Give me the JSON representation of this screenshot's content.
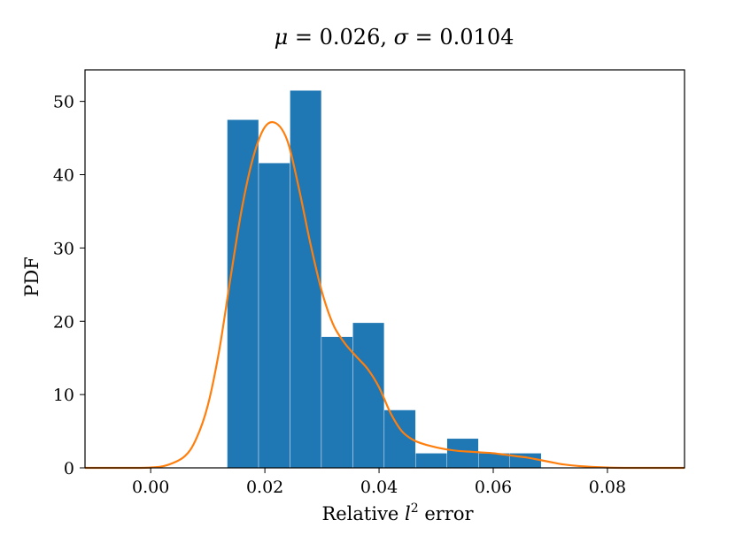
{
  "chart_data": {
    "type": "bar",
    "title": {
      "mu_symbol": "μ",
      "mu_value": "0.026",
      "sigma_symbol": "σ",
      "sigma_value": "0.0104",
      "eq": " = ",
      "sep": ", "
    },
    "xlabel": {
      "prefix": "Relative ",
      "var": "l",
      "sup": "2",
      "suffix": " error"
    },
    "ylabel": "PDF",
    "xlim": [
      -0.0115,
      0.0935
    ],
    "ylim": [
      0,
      54.3
    ],
    "x_ticks": [
      0.0,
      0.02,
      0.04,
      0.06,
      0.08
    ],
    "x_tick_labels": [
      "0.00",
      "0.02",
      "0.04",
      "0.06",
      "0.08"
    ],
    "y_ticks": [
      0,
      10,
      20,
      30,
      40,
      50
    ],
    "y_tick_labels": [
      "0",
      "10",
      "20",
      "30",
      "40",
      "50"
    ],
    "grid": false,
    "colors": {
      "bars": "#1f77b4",
      "kde": "#ff7f0e"
    },
    "histogram": {
      "bin_edges": [
        0.0134,
        0.0189,
        0.0244,
        0.0299,
        0.0354,
        0.0409,
        0.0464,
        0.0519,
        0.0574,
        0.0629,
        0.0684
      ],
      "values": [
        47.5,
        41.6,
        51.5,
        17.9,
        19.8,
        7.9,
        2.0,
        4.0,
        2.0,
        2.0
      ]
    },
    "kde": {
      "x": [
        -0.0115,
        -0.005,
        0.0,
        0.003,
        0.006,
        0.008,
        0.01,
        0.012,
        0.014,
        0.016,
        0.018,
        0.02,
        0.022,
        0.024,
        0.026,
        0.028,
        0.03,
        0.032,
        0.034,
        0.036,
        0.038,
        0.04,
        0.042,
        0.044,
        0.046,
        0.048,
        0.05,
        0.052,
        0.054,
        0.056,
        0.058,
        0.06,
        0.062,
        0.064,
        0.066,
        0.068,
        0.07,
        0.072,
        0.075,
        0.08,
        0.085,
        0.0935
      ],
      "y": [
        0.0,
        0.0,
        0.05,
        0.4,
        1.6,
        4.0,
        8.5,
        16.0,
        26.0,
        35.5,
        42.5,
        46.5,
        47.0,
        44.5,
        38.0,
        30.5,
        24.0,
        19.5,
        17.0,
        15.2,
        13.5,
        11.0,
        7.5,
        5.0,
        3.8,
        3.2,
        2.8,
        2.5,
        2.3,
        2.2,
        2.1,
        2.0,
        1.8,
        1.6,
        1.4,
        1.1,
        0.8,
        0.5,
        0.25,
        0.05,
        0.0,
        0.0
      ]
    }
  }
}
